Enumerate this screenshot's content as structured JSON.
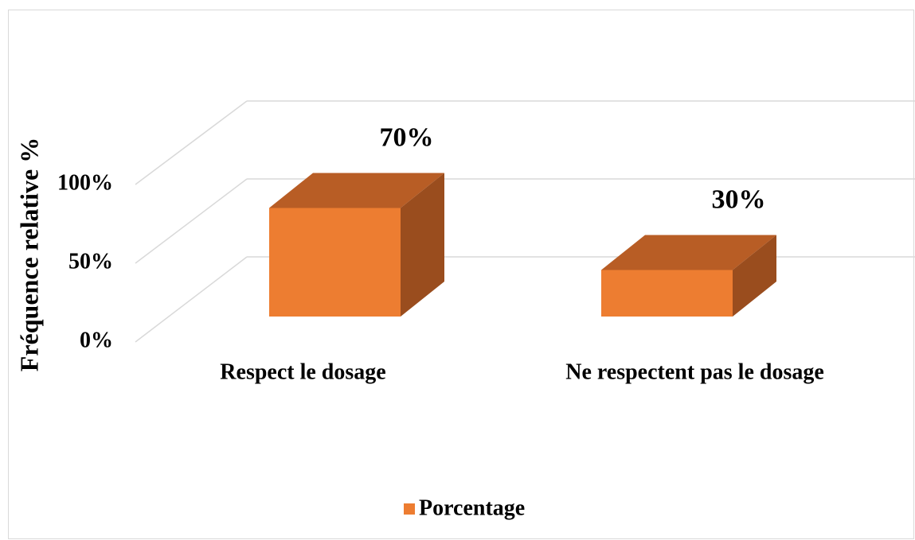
{
  "chart_data": {
    "type": "bar3d",
    "y_axis_label": "Fréquence relative %",
    "categories": [
      "Respect le dosage",
      "Ne respectent pas le dosage"
    ],
    "series": [
      {
        "name": "Porcentage",
        "color": "#ed7d31",
        "values": [
          70,
          30
        ],
        "value_labels": [
          "70%",
          "30%"
        ]
      }
    ],
    "ylim": [
      0,
      100
    ],
    "yticks": [
      {
        "value": 0,
        "label": "0%"
      },
      {
        "value": 50,
        "label": "50%"
      },
      {
        "value": 100,
        "label": "100%"
      }
    ],
    "grid": true,
    "legend": "bottom"
  }
}
